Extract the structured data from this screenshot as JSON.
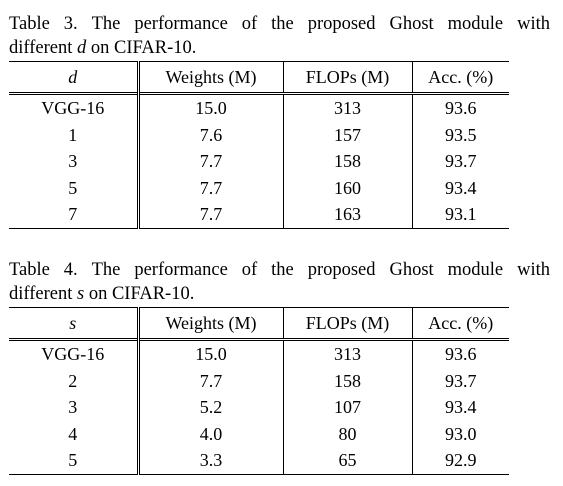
{
  "tables": [
    {
      "caption_line1": [
        "Table",
        "3.",
        "The",
        "performance",
        "of",
        "the",
        "proposed",
        "Ghost",
        "module",
        "with"
      ],
      "caption_line2_pre": "different ",
      "caption_line2_var": "d",
      "caption_line2_post": " on CIFAR-10.",
      "headers": [
        "d",
        "Weights (M)",
        "FLOPs (M)",
        "Acc. (%)"
      ],
      "rows": [
        [
          "VGG-16",
          "15.0",
          "313",
          "93.6"
        ],
        [
          "1",
          "7.6",
          "157",
          "93.5"
        ],
        [
          "3",
          "7.7",
          "158",
          "93.7"
        ],
        [
          "5",
          "7.7",
          "160",
          "93.4"
        ],
        [
          "7",
          "7.7",
          "163",
          "93.1"
        ]
      ]
    },
    {
      "caption_line1": [
        "Table",
        "4.",
        "The",
        "performance",
        "of",
        "the",
        "proposed",
        "Ghost",
        "module",
        "with"
      ],
      "caption_line2_pre": "different ",
      "caption_line2_var": "s",
      "caption_line2_post": " on CIFAR-10.",
      "headers": [
        "s",
        "Weights (M)",
        "FLOPs (M)",
        "Acc. (%)"
      ],
      "rows": [
        [
          "VGG-16",
          "15.0",
          "313",
          "93.6"
        ],
        [
          "2",
          "7.7",
          "158",
          "93.7"
        ],
        [
          "3",
          "5.2",
          "107",
          "93.4"
        ],
        [
          "4",
          "4.0",
          "80",
          "93.0"
        ],
        [
          "5",
          "3.3",
          "65",
          "92.9"
        ]
      ]
    }
  ]
}
